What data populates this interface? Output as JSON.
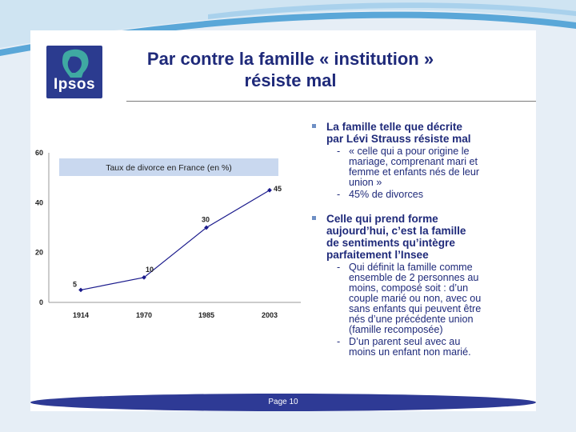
{
  "logo": {
    "text": "Ipsos"
  },
  "slide_title": [
    "Par contre la famille « institution »",
    "résiste mal"
  ],
  "chart_data": {
    "type": "line",
    "title": "Taux de divorce en France (en %)",
    "categories": [
      "1914",
      "1970",
      "1985",
      "2003"
    ],
    "values": [
      5,
      10,
      30,
      45
    ],
    "data_labels": [
      "5",
      "10",
      "30",
      "45"
    ],
    "y_ticks": [
      "0",
      "20",
      "40",
      "60"
    ],
    "ylim": [
      0,
      60
    ],
    "grid": false,
    "colors": {
      "line": "#1a1a8c",
      "title_band": "#c9d8ef"
    }
  },
  "text": {
    "bullet1": [
      "La famille telle que décrite",
      "par Lévi Strauss résiste mal"
    ],
    "bullet1_sub1": [
      "« celle qui a pour origine le",
      "mariage, comprenant mari et",
      "femme et enfants nés de leur",
      "union »"
    ],
    "bullet1_sub2": [
      "45% de divorces"
    ],
    "bullet2": [
      "Celle qui prend forme",
      "aujourd’hui, c’est la famille",
      "de sentiments qu’intègre",
      "parfaitement l’Insee"
    ],
    "bullet2_sub1": [
      "Qui définit la famille comme",
      "ensemble de 2 personnes au",
      "moins, composé soit : d’un",
      "couple marié ou non, avec ou",
      "sans enfants qui peuvent être",
      "nés d’une précédente union",
      "(famille recomposée)"
    ],
    "bullet2_sub2": [
      "D’un parent seul avec au",
      "moins un enfant non marié."
    ]
  },
  "footer": {
    "page": "Page 10"
  },
  "colors": {
    "title": "#1f2a7a",
    "footer_bar": "#2e3a95",
    "logo_bg": "#2b3b8f"
  }
}
